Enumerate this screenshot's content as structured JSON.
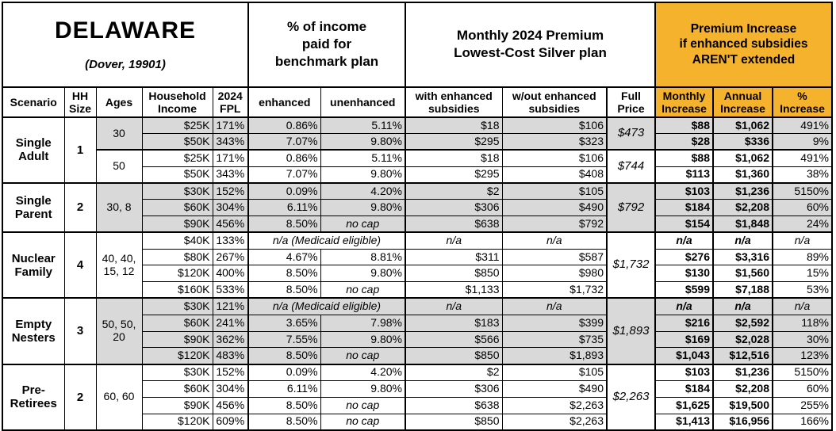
{
  "title": {
    "name": "DELAWARE",
    "subtitle": "(Dover, 19901)"
  },
  "sections": {
    "benchmark": "% of income\npaid for\nbenchmark plan",
    "premium": "Monthly 2024 Premium\nLowest-Cost Silver plan",
    "increase": "Premium Increase\nif enhanced subsidies\nAREN'T extended"
  },
  "columns": [
    "Scenario",
    "HH\nSize",
    "Ages",
    "Household\nIncome",
    "2024\nFPL",
    "enhanced",
    "unenhanced",
    "with enhanced\nsubsidies",
    "w/out enhanced\nsubsidies",
    "Full\nPrice",
    "Monthly\nIncrease",
    "Annual\nIncrease",
    "%\nIncrease"
  ],
  "colors": {
    "highlight": "#F5B22D",
    "row_shade": "#D9D9D9",
    "border": "#000000"
  },
  "groups": [
    {
      "scenario": "Single\nAdult",
      "hh_size": "1",
      "blocks": [
        {
          "ages": "30",
          "full_price": "$473",
          "shaded": true,
          "rows": [
            {
              "income": "$25K",
              "fpl": "171%",
              "enhanced": "0.86%",
              "unenhanced": "5.11%",
              "with_subsidies": "$18",
              "without_subsidies": "$106",
              "monthly": "$88",
              "annual": "$1,062",
              "pct": "491%"
            },
            {
              "income": "$50K",
              "fpl": "343%",
              "enhanced": "7.07%",
              "unenhanced": "9.80%",
              "with_subsidies": "$295",
              "without_subsidies": "$323",
              "monthly": "$28",
              "annual": "$336",
              "pct": "9%"
            }
          ]
        },
        {
          "ages": "50",
          "full_price": "$744",
          "shaded": false,
          "rows": [
            {
              "income": "$25K",
              "fpl": "171%",
              "enhanced": "0.86%",
              "unenhanced": "5.11%",
              "with_subsidies": "$18",
              "without_subsidies": "$106",
              "monthly": "$88",
              "annual": "$1,062",
              "pct": "491%"
            },
            {
              "income": "$50K",
              "fpl": "343%",
              "enhanced": "7.07%",
              "unenhanced": "9.80%",
              "with_subsidies": "$295",
              "without_subsidies": "$408",
              "monthly": "$113",
              "annual": "$1,360",
              "pct": "38%"
            }
          ]
        }
      ]
    },
    {
      "scenario": "Single\nParent",
      "hh_size": "2",
      "blocks": [
        {
          "ages": "30, 8",
          "full_price": "$792",
          "shaded": true,
          "rows": [
            {
              "income": "$30K",
              "fpl": "152%",
              "enhanced": "0.09%",
              "unenhanced": "4.20%",
              "with_subsidies": "$2",
              "without_subsidies": "$105",
              "monthly": "$103",
              "annual": "$1,236",
              "pct": "5150%"
            },
            {
              "income": "$60K",
              "fpl": "304%",
              "enhanced": "6.11%",
              "unenhanced": "9.80%",
              "with_subsidies": "$306",
              "without_subsidies": "$490",
              "monthly": "$184",
              "annual": "$2,208",
              "pct": "60%"
            },
            {
              "income": "$90K",
              "fpl": "456%",
              "enhanced": "8.50%",
              "unenhanced": "no cap",
              "with_subsidies": "$638",
              "without_subsidies": "$792",
              "monthly": "$154",
              "annual": "$1,848",
              "pct": "24%"
            }
          ]
        }
      ]
    },
    {
      "scenario": "Nuclear\nFamily",
      "hh_size": "4",
      "blocks": [
        {
          "ages": "40, 40,\n15, 12",
          "full_price": "$1,732",
          "shaded": false,
          "rows": [
            {
              "income": "$40K",
              "fpl": "133%",
              "medicaid": true,
              "enhanced": "n/a (Medicaid eligible)",
              "unenhanced": "",
              "with_subsidies": "n/a",
              "without_subsidies": "n/a",
              "monthly": "n/a",
              "annual": "n/a",
              "pct": "n/a"
            },
            {
              "income": "$80K",
              "fpl": "267%",
              "enhanced": "4.67%",
              "unenhanced": "8.81%",
              "with_subsidies": "$311",
              "without_subsidies": "$587",
              "monthly": "$276",
              "annual": "$3,316",
              "pct": "89%"
            },
            {
              "income": "$120K",
              "fpl": "400%",
              "enhanced": "8.50%",
              "unenhanced": "9.80%",
              "with_subsidies": "$850",
              "without_subsidies": "$980",
              "monthly": "$130",
              "annual": "$1,560",
              "pct": "15%"
            },
            {
              "income": "$160K",
              "fpl": "533%",
              "enhanced": "8.50%",
              "unenhanced": "no cap",
              "with_subsidies": "$1,133",
              "without_subsidies": "$1,732",
              "monthly": "$599",
              "annual": "$7,188",
              "pct": "53%"
            }
          ]
        }
      ]
    },
    {
      "scenario": "Empty\nNesters",
      "hh_size": "3",
      "blocks": [
        {
          "ages": "50, 50,\n20",
          "full_price": "$1,893",
          "shaded": true,
          "rows": [
            {
              "income": "$30K",
              "fpl": "121%",
              "medicaid": true,
              "enhanced": "n/a (Medicaid eligible)",
              "unenhanced": "",
              "with_subsidies": "n/a",
              "without_subsidies": "n/a",
              "monthly": "n/a",
              "annual": "n/a",
              "pct": "n/a"
            },
            {
              "income": "$60K",
              "fpl": "241%",
              "enhanced": "3.65%",
              "unenhanced": "7.98%",
              "with_subsidies": "$183",
              "without_subsidies": "$399",
              "monthly": "$216",
              "annual": "$2,592",
              "pct": "118%"
            },
            {
              "income": "$90K",
              "fpl": "362%",
              "enhanced": "7.55%",
              "unenhanced": "9.80%",
              "with_subsidies": "$566",
              "without_subsidies": "$735",
              "monthly": "$169",
              "annual": "$2,028",
              "pct": "30%"
            },
            {
              "income": "$120K",
              "fpl": "483%",
              "enhanced": "8.50%",
              "unenhanced": "no cap",
              "with_subsidies": "$850",
              "without_subsidies": "$1,893",
              "monthly": "$1,043",
              "annual": "$12,516",
              "pct": "123%"
            }
          ]
        }
      ]
    },
    {
      "scenario": "Pre-\nRetirees",
      "hh_size": "2",
      "blocks": [
        {
          "ages": "60, 60",
          "full_price": "$2,263",
          "shaded": false,
          "rows": [
            {
              "income": "$30K",
              "fpl": "152%",
              "enhanced": "0.09%",
              "unenhanced": "4.20%",
              "with_subsidies": "$2",
              "without_subsidies": "$105",
              "monthly": "$103",
              "annual": "$1,236",
              "pct": "5150%"
            },
            {
              "income": "$60K",
              "fpl": "304%",
              "enhanced": "6.11%",
              "unenhanced": "9.80%",
              "with_subsidies": "$306",
              "without_subsidies": "$490",
              "monthly": "$184",
              "annual": "$2,208",
              "pct": "60%"
            },
            {
              "income": "$90K",
              "fpl": "456%",
              "enhanced": "8.50%",
              "unenhanced": "no cap",
              "with_subsidies": "$638",
              "without_subsidies": "$2,263",
              "monthly": "$1,625",
              "annual": "$19,500",
              "pct": "255%"
            },
            {
              "income": "$120K",
              "fpl": "609%",
              "enhanced": "8.50%",
              "unenhanced": "no cap",
              "with_subsidies": "$850",
              "without_subsidies": "$2,263",
              "monthly": "$1,413",
              "annual": "$16,956",
              "pct": "166%"
            }
          ]
        }
      ]
    }
  ]
}
